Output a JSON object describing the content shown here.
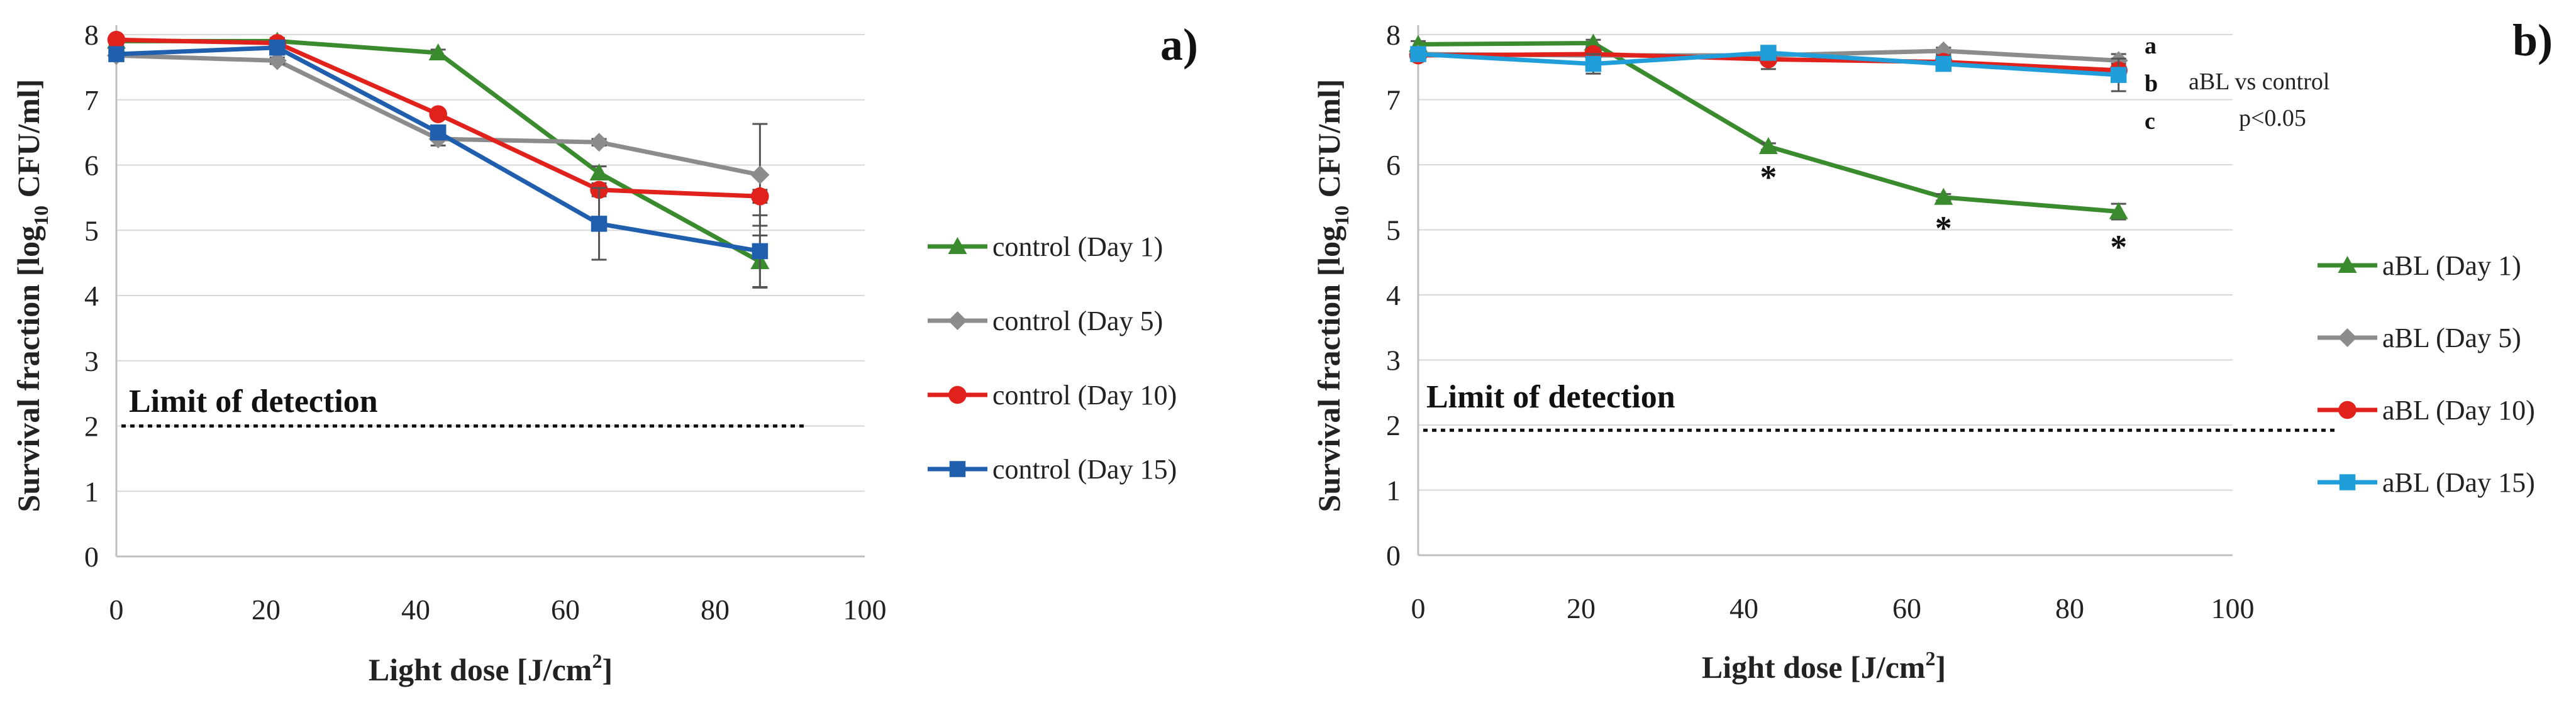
{
  "chart_data": [
    {
      "type": "line",
      "panel_label": "a)",
      "xlabel": "Light dose [J/cm",
      "xlabel_sup": "2",
      "xlabel_end": "]",
      "ylabel_pre": "Survival fraction [log",
      "ylabel_sub": "10",
      "ylabel_post": " CFU/ml]",
      "xlim": [
        0,
        100
      ],
      "ylim": [
        0,
        8
      ],
      "xticks": [
        "0",
        "20",
        "40",
        "60",
        "80",
        "100"
      ],
      "yticks": [
        "0",
        "1",
        "2",
        "3",
        "4",
        "5",
        "6",
        "7",
        "8"
      ],
      "detection_limit": {
        "label": "Limit of detection",
        "value": 2.0,
        "x_end": 92
      },
      "x": [
        0,
        21.5,
        43,
        64.5,
        86
      ],
      "series": [
        {
          "name": "control (Day 1)",
          "color": "#3a8a2e",
          "marker": "triangle",
          "values": [
            7.9,
            7.9,
            7.72,
            5.88,
            4.52
          ],
          "errors": [
            0.05,
            0.05,
            0.05,
            0.1,
            0.4
          ]
        },
        {
          "name": "control (Day 5)",
          "color": "#8c8c8c",
          "marker": "diamond",
          "values": [
            7.68,
            7.6,
            6.4,
            6.35,
            5.85
          ],
          "errors": [
            0.05,
            0.05,
            0.1,
            0.05,
            0.78
          ]
        },
        {
          "name": "control  (Day 10)",
          "color": "#e0211c",
          "marker": "circle",
          "values": [
            7.92,
            7.87,
            6.78,
            5.62,
            5.52
          ],
          "errors": [
            0.05,
            0.05,
            0.05,
            0.1,
            0.1
          ]
        },
        {
          "name": "control  (Day 15)",
          "color": "#1f5fae",
          "marker": "square",
          "values": [
            7.7,
            7.8,
            6.5,
            5.1,
            4.68
          ],
          "errors": [
            0.05,
            0.05,
            0.1,
            0.55,
            0.55
          ]
        }
      ]
    },
    {
      "type": "line",
      "panel_label": "b)",
      "xlabel": "Light dose [J/cm",
      "xlabel_sup": "2",
      "xlabel_end": "]",
      "ylabel_pre": "Survival fraction [log",
      "ylabel_sub": "10",
      "ylabel_post": " CFU/ml]",
      "xlim": [
        0,
        100
      ],
      "ylim": [
        0,
        8
      ],
      "xticks": [
        "0",
        "20",
        "40",
        "60",
        "80",
        "100"
      ],
      "yticks": [
        "0",
        "1",
        "2",
        "3",
        "4",
        "5",
        "6",
        "7",
        "8"
      ],
      "detection_limit": {
        "label": "Limit of detection",
        "value": 1.92,
        "x_end": 113
      },
      "x": [
        0,
        21.5,
        43,
        64.5,
        86
      ],
      "series": [
        {
          "name": "aBL (Day 1)",
          "color": "#3a8a2e",
          "marker": "triangle",
          "values": [
            7.85,
            7.87,
            6.28,
            5.5,
            5.28
          ],
          "errors": [
            0.05,
            0.05,
            0.05,
            0.05,
            0.12
          ]
        },
        {
          "name": "aBL (Day 5)",
          "color": "#8c8c8c",
          "marker": "diamond",
          "values": [
            7.7,
            7.68,
            7.68,
            7.75,
            7.6
          ],
          "errors": [
            0.05,
            0.05,
            0.05,
            0.05,
            0.1
          ]
        },
        {
          "name": "aBL (Day 10)",
          "color": "#e0211c",
          "marker": "circle",
          "values": [
            7.68,
            7.7,
            7.62,
            7.58,
            7.45
          ],
          "errors": [
            0.05,
            0.1,
            0.15,
            0.1,
            0.1
          ]
        },
        {
          "name": "aBL (Day 15)",
          "color": "#1f9ed9",
          "marker": "square",
          "values": [
            7.7,
            7.55,
            7.72,
            7.55,
            7.38
          ],
          "errors": [
            0.05,
            0.15,
            0.1,
            0.1,
            0.25
          ]
        }
      ],
      "annotations": {
        "letters": [
          "a",
          "b",
          "c"
        ],
        "note_line1": "aBL vs control",
        "note_line2": "p<0.05",
        "significance_marker": "*"
      }
    }
  ]
}
